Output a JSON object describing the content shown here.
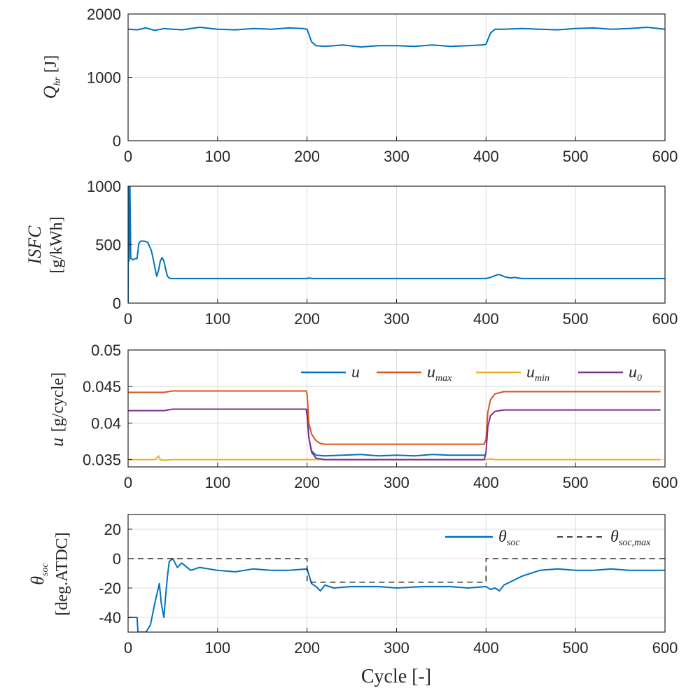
{
  "chart_data": [
    {
      "id": "q",
      "type": "line",
      "ylabel": "Q_hr [J]",
      "ylabel_main": "Q",
      "ylabel_sub": "hr",
      "ylabel_unit": "[J]",
      "xlim": [
        0,
        600
      ],
      "ylim": [
        0,
        2000
      ],
      "yticks": [
        "0",
        "1000",
        "2000"
      ],
      "yticks_values": [
        0,
        1000,
        2000
      ],
      "xticks": [
        "0",
        "100",
        "200",
        "300",
        "400",
        "500",
        "600"
      ],
      "xticks_values": [
        0,
        100,
        200,
        300,
        400,
        500,
        600
      ],
      "grid": true,
      "series": [
        {
          "name": "Q_hr",
          "color": "#0072BD",
          "style": "solid",
          "x": [
            0,
            10,
            20,
            30,
            40,
            50,
            60,
            80,
            100,
            120,
            140,
            160,
            180,
            195,
            200,
            205,
            210,
            220,
            240,
            260,
            280,
            300,
            320,
            340,
            360,
            380,
            395,
            400,
            405,
            410,
            420,
            440,
            460,
            480,
            500,
            520,
            540,
            560,
            580,
            600
          ],
          "y": [
            1760,
            1750,
            1780,
            1740,
            1770,
            1760,
            1750,
            1790,
            1760,
            1750,
            1770,
            1760,
            1780,
            1770,
            1760,
            1560,
            1500,
            1490,
            1510,
            1480,
            1500,
            1500,
            1490,
            1510,
            1490,
            1500,
            1510,
            1520,
            1700,
            1760,
            1760,
            1770,
            1760,
            1750,
            1770,
            1780,
            1760,
            1770,
            1790,
            1760
          ]
        }
      ]
    },
    {
      "id": "isfc",
      "type": "line",
      "ylabel": "ISFC [g/kWh]",
      "ylabel_main": "ISFC",
      "ylabel_unit": "[g/kWh]",
      "xlim": [
        0,
        600
      ],
      "ylim": [
        0,
        1000
      ],
      "yticks": [
        "0",
        "500",
        "1000"
      ],
      "yticks_values": [
        0,
        500,
        1000
      ],
      "xticks": [
        "0",
        "100",
        "200",
        "300",
        "400",
        "500",
        "600"
      ],
      "xticks_values": [
        0,
        100,
        200,
        300,
        400,
        500,
        600
      ],
      "grid": true,
      "series": [
        {
          "name": "ISFC",
          "color": "#0072BD",
          "style": "solid",
          "x": [
            0,
            0.5,
            1,
            2,
            3,
            4,
            5,
            8,
            10,
            12,
            14,
            18,
            22,
            26,
            28,
            30,
            32,
            34,
            36,
            38,
            40,
            42,
            44,
            46,
            48,
            50,
            60,
            100,
            200,
            202,
            206,
            300,
            400,
            405,
            410,
            414,
            418,
            422,
            428,
            432,
            436,
            440,
            500,
            600
          ],
          "y": [
            0,
            1000,
            360,
            1000,
            380,
            380,
            370,
            380,
            380,
            510,
            530,
            530,
            520,
            450,
            380,
            300,
            230,
            280,
            360,
            390,
            360,
            290,
            230,
            215,
            210,
            210,
            210,
            210,
            210,
            215,
            210,
            210,
            210,
            220,
            235,
            245,
            235,
            222,
            215,
            220,
            215,
            210,
            210,
            210
          ]
        }
      ]
    },
    {
      "id": "u",
      "type": "line",
      "ylabel": "u [g/cycle]",
      "ylabel_main": "u",
      "ylabel_unit": "[g/cycle]",
      "xlim": [
        0,
        600
      ],
      "ylim": [
        0.034,
        0.05
      ],
      "yticks": [
        "0.035",
        "0.04",
        "0.045",
        "0.05"
      ],
      "yticks_values": [
        0.035,
        0.04,
        0.045,
        0.05
      ],
      "xticks": [
        "0",
        "100",
        "200",
        "300",
        "400",
        "500",
        "600"
      ],
      "xticks_values": [
        0,
        100,
        200,
        300,
        400,
        500,
        600
      ],
      "grid": true,
      "legend_position": "top-right",
      "series": [
        {
          "name": "u",
          "legend_main": "u",
          "legend_sub": "",
          "color": "#0072BD",
          "style": "solid",
          "x": [
            200,
            202,
            205,
            210,
            220,
            240,
            260,
            280,
            300,
            320,
            340,
            360,
            380,
            400
          ],
          "y": [
            0.0418,
            0.038,
            0.0362,
            0.0356,
            0.0355,
            0.0356,
            0.0357,
            0.0355,
            0.0356,
            0.0355,
            0.0357,
            0.0356,
            0.0356,
            0.0356
          ]
        },
        {
          "name": "u_max",
          "legend_main": "u",
          "legend_sub": "max",
          "color": "#D95319",
          "style": "solid",
          "x": [
            0,
            40,
            50,
            100,
            150,
            199,
            200,
            202,
            205,
            210,
            215,
            220,
            300,
            398,
            400,
            402,
            405,
            410,
            420,
            500,
            595
          ],
          "y": [
            0.0442,
            0.0442,
            0.0444,
            0.0444,
            0.0444,
            0.0444,
            0.044,
            0.04,
            0.0385,
            0.0376,
            0.0372,
            0.0371,
            0.0371,
            0.0371,
            0.0378,
            0.0415,
            0.0432,
            0.044,
            0.0443,
            0.0443,
            0.0443
          ]
        },
        {
          "name": "u_min",
          "legend_main": "u",
          "legend_sub": "min",
          "color": "#EDB120",
          "style": "solid",
          "x": [
            0,
            30,
            32,
            34,
            36,
            40,
            50,
            100,
            200,
            300,
            400,
            405,
            410,
            500,
            595
          ],
          "y": [
            0.035,
            0.035,
            0.0352,
            0.0355,
            0.035,
            0.0349,
            0.035,
            0.035,
            0.035,
            0.035,
            0.035,
            0.0351,
            0.035,
            0.035,
            0.035
          ]
        },
        {
          "name": "u_0",
          "legend_main": "u",
          "legend_sub": "0",
          "color": "#7E2F8E",
          "style": "solid",
          "x": [
            0,
            40,
            50,
            100,
            150,
            199,
            200,
            202,
            205,
            210,
            220,
            300,
            398,
            400,
            402,
            405,
            410,
            420,
            500,
            595
          ],
          "y": [
            0.0417,
            0.0417,
            0.0419,
            0.0419,
            0.0419,
            0.0419,
            0.041,
            0.038,
            0.036,
            0.0352,
            0.035,
            0.035,
            0.035,
            0.036,
            0.0395,
            0.041,
            0.0416,
            0.0418,
            0.0418,
            0.0418
          ]
        }
      ]
    },
    {
      "id": "theta",
      "type": "line",
      "ylabel": "θ_soc [deg.ATDC]",
      "ylabel_main": "θ",
      "ylabel_sub": "soc",
      "ylabel_unit": "[deg.ATDC]",
      "xlim": [
        0,
        600
      ],
      "ylim": [
        -50,
        30
      ],
      "yticks": [
        "-40",
        "-20",
        "0",
        "20"
      ],
      "yticks_values": [
        -40,
        -20,
        0,
        20
      ],
      "xticks": [
        "0",
        "100",
        "200",
        "300",
        "400",
        "500",
        "600"
      ],
      "xticks_values": [
        0,
        100,
        200,
        300,
        400,
        500,
        600
      ],
      "grid": true,
      "legend_position": "top-right",
      "series": [
        {
          "name": "θ_soc",
          "legend_main": "θ",
          "legend_sub": "soc",
          "color": "#0072BD",
          "style": "solid",
          "x": [
            0,
            10,
            11,
            15,
            20,
            25,
            30,
            35,
            37,
            40,
            42,
            44,
            46,
            50,
            55,
            60,
            70,
            80,
            100,
            120,
            140,
            160,
            180,
            200,
            205,
            210,
            215,
            220,
            230,
            250,
            280,
            300,
            330,
            360,
            380,
            400,
            405,
            410,
            415,
            420,
            430,
            440,
            450,
            460,
            480,
            500,
            520,
            540,
            560,
            580,
            600
          ],
          "y": [
            -40,
            -40,
            -50,
            -50,
            -50,
            -45,
            -30,
            -17,
            -30,
            -40,
            -25,
            -12,
            -2,
            0,
            -6,
            -3,
            -8,
            -6,
            -8,
            -9,
            -7,
            -8,
            -8,
            -7,
            -17,
            -19,
            -22,
            -18,
            -20,
            -19,
            -19,
            -20,
            -19,
            -19,
            -20,
            -19,
            -21,
            -20,
            -22,
            -18,
            -15,
            -12,
            -10,
            -8,
            -7,
            -8,
            -8,
            -7,
            -8,
            -8,
            -8
          ]
        },
        {
          "name": "θ_soc,max",
          "legend_main": "θ",
          "legend_sub": "soc,max",
          "color": "#000000",
          "style": "dashed",
          "x": [
            0,
            200,
            200,
            400,
            400,
            600
          ],
          "y": [
            0,
            0,
            -16,
            -16,
            0,
            0
          ]
        }
      ]
    }
  ],
  "xlabel": "Cycle [-]"
}
